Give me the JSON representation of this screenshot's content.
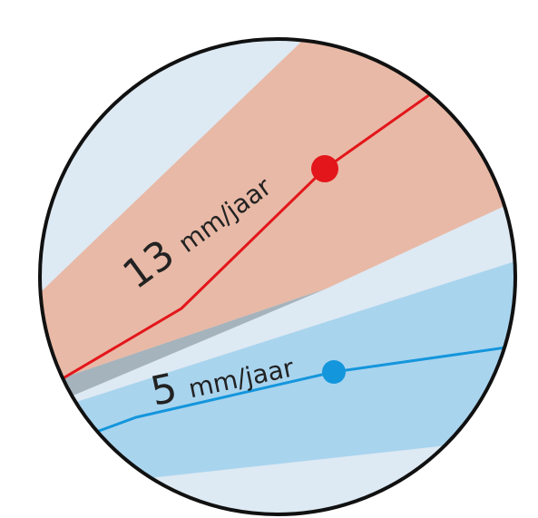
{
  "diagram": {
    "colors": {
      "background": "#dde9f3",
      "red_band": "#e8b9a6",
      "red_line": "#e3161b",
      "blue_band": "#a9d4ee",
      "blue_line": "#1496dc",
      "overlap": "#a5b3bc",
      "border": "#111111",
      "text": "#222222"
    },
    "upper_trend": {
      "value": "13",
      "unit": "mm/jaar"
    },
    "lower_trend": {
      "value": "5",
      "unit": "mm/jaar"
    }
  }
}
